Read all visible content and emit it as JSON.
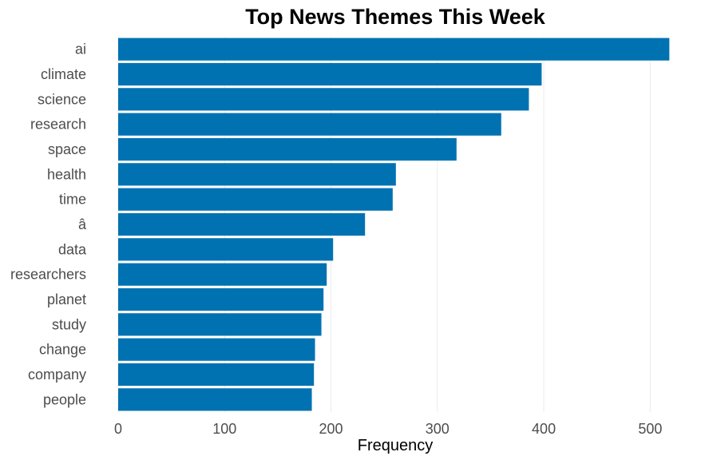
{
  "chart_data": {
    "type": "bar",
    "orientation": "horizontal",
    "title": "Top News Themes This Week",
    "xlabel": "Frequency",
    "ylabel": "",
    "categories": [
      "ai",
      "climate",
      "science",
      "research",
      "space",
      "health",
      "time",
      "â",
      "data",
      "researchers",
      "planet",
      "study",
      "change",
      "company",
      "people"
    ],
    "values": [
      518,
      398,
      386,
      360,
      318,
      261,
      258,
      232,
      202,
      196,
      193,
      191,
      185,
      184,
      182
    ],
    "xlim": [
      0,
      520
    ],
    "xticks": [
      0,
      100,
      200,
      300,
      400,
      500
    ],
    "xtick_labels": [
      "0",
      "100",
      "200",
      "300",
      "400",
      "500"
    ],
    "bar_color": "#0072b2",
    "grid": true,
    "legend": "none"
  }
}
